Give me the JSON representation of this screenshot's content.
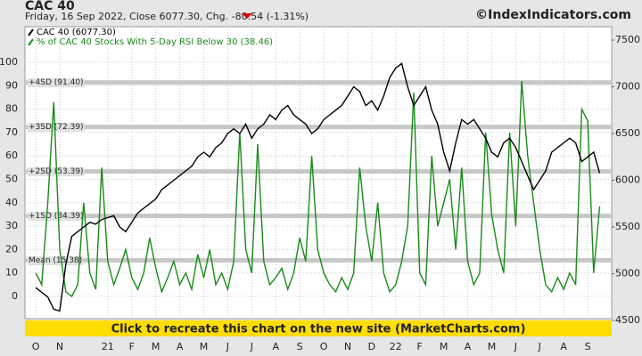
{
  "chart_data": {
    "type": "line",
    "title": "CAC 40",
    "subtitle": "Friday, 16 Sep 2022, Close 6077.30, Chg. -80.54 (-1.31%)",
    "source": "©IndexIndicators.com",
    "banner": "Click to recreate this chart on the new site (MarketCharts.com)",
    "x": [
      0,
      0.25,
      0.5,
      0.75,
      1,
      1.25,
      1.5,
      1.75,
      2,
      2.25,
      2.5,
      2.75,
      3,
      3.25,
      3.5,
      3.75,
      4,
      4.25,
      4.5,
      4.75,
      5,
      5.25,
      5.5,
      5.75,
      6,
      6.25,
      6.5,
      6.75,
      7,
      7.25,
      7.5,
      7.75,
      8,
      8.25,
      8.5,
      8.75,
      9,
      9.25,
      9.5,
      9.75,
      10,
      10.25,
      10.5,
      10.75,
      11,
      11.25,
      11.5,
      11.75,
      12,
      12.25,
      12.5,
      12.75,
      13,
      13.25,
      13.5,
      13.75,
      14,
      14.25,
      14.5,
      14.75,
      15,
      15.25,
      15.5,
      15.75,
      16,
      16.25,
      16.5,
      16.75,
      17,
      17.25,
      17.5,
      17.75,
      18,
      18.25,
      18.5,
      18.75,
      19,
      19.25,
      19.5,
      19.75,
      20,
      20.25,
      20.5,
      20.75,
      21,
      21.25,
      21.5,
      21.75,
      22,
      22.25,
      22.5,
      22.75,
      23,
      23.25,
      23.5
    ],
    "series": [
      {
        "name": "CAC 40 (6077.30)",
        "color": "#000000",
        "axis": "y2",
        "values": [
          4850,
          4800,
          4750,
          4620,
          4600,
          5100,
          5400,
          5450,
          5500,
          5550,
          5530,
          5580,
          5600,
          5620,
          5500,
          5450,
          5550,
          5650,
          5700,
          5750,
          5800,
          5900,
          5950,
          6000,
          6050,
          6100,
          6150,
          6250,
          6300,
          6250,
          6350,
          6400,
          6500,
          6550,
          6500,
          6600,
          6450,
          6550,
          6600,
          6700,
          6650,
          6750,
          6800,
          6700,
          6650,
          6600,
          6500,
          6550,
          6650,
          6700,
          6750,
          6800,
          6900,
          7000,
          6950,
          6800,
          6850,
          6750,
          6900,
          7100,
          7200,
          7250,
          7000,
          6800,
          6900,
          7000,
          6750,
          6600,
          6300,
          6100,
          6400,
          6650,
          6600,
          6650,
          6550,
          6450,
          6300,
          6250,
          6400,
          6450,
          6350,
          6200,
          6050,
          5900,
          6000,
          6100,
          6300,
          6350,
          6400,
          6450,
          6400,
          6200,
          6250,
          6300,
          6077.3
        ]
      },
      {
        "name": "% of CAC 40 Stocks With 5-Day RSI Below 30 (38.46)",
        "color": "#1a8a1a",
        "values": [
          10,
          5,
          40,
          83,
          20,
          2,
          0,
          5,
          40,
          10,
          3,
          55,
          15,
          5,
          12,
          20,
          8,
          3,
          10,
          25,
          12,
          2,
          8,
          15,
          5,
          10,
          3,
          18,
          8,
          20,
          5,
          10,
          3,
          15,
          70,
          20,
          10,
          65,
          15,
          5,
          8,
          12,
          3,
          10,
          25,
          15,
          60,
          20,
          10,
          5,
          2,
          8,
          3,
          10,
          55,
          30,
          15,
          40,
          10,
          2,
          5,
          15,
          30,
          87,
          10,
          5,
          60,
          30,
          40,
          50,
          20,
          55,
          15,
          5,
          10,
          70,
          35,
          20,
          10,
          70,
          30,
          92,
          60,
          40,
          20,
          5,
          2,
          8,
          3,
          10,
          5,
          80,
          75,
          10,
          38.46
        ]
      }
    ],
    "annotations": [
      {
        "label": "+4SD (91.40)",
        "value": 91.4
      },
      {
        "label": "+3SD (72.39)",
        "value": 72.39
      },
      {
        "label": "+2SD (53.39)",
        "value": 53.39
      },
      {
        "label": "+1SD (34.39)",
        "value": 34.39
      },
      {
        "label": "Mean (15.38)",
        "value": 15.38
      }
    ],
    "xlim": [
      -0.45,
      24
    ],
    "xticks": [
      {
        "value": 0,
        "label": "O"
      },
      {
        "value": 1,
        "label": "N"
      },
      {
        "value": 3,
        "label": "21"
      },
      {
        "value": 4,
        "label": "F"
      },
      {
        "value": 5,
        "label": "M"
      },
      {
        "value": 6,
        "label": "A"
      },
      {
        "value": 7,
        "label": "M"
      },
      {
        "value": 8,
        "label": "J"
      },
      {
        "value": 9,
        "label": "J"
      },
      {
        "value": 10,
        "label": "A"
      },
      {
        "value": 11,
        "label": "S"
      },
      {
        "value": 12,
        "label": "O"
      },
      {
        "value": 13,
        "label": "N"
      },
      {
        "value": 14,
        "label": "D"
      },
      {
        "value": 15,
        "label": "22"
      },
      {
        "value": 16,
        "label": "F"
      },
      {
        "value": 17,
        "label": "M"
      },
      {
        "value": 18,
        "label": "A"
      },
      {
        "value": 19,
        "label": "M"
      },
      {
        "value": 20,
        "label": "J"
      },
      {
        "value": 21,
        "label": "J"
      },
      {
        "value": 22,
        "label": "A"
      },
      {
        "value": 23,
        "label": "S"
      }
    ],
    "ylim": [
      -9.5,
      115.2
    ],
    "yticks": [
      0,
      10,
      20,
      30,
      40,
      50,
      60,
      70,
      80,
      90,
      100
    ],
    "y2lim": [
      4519,
      7643
    ],
    "y2ticks": [
      4500,
      5000,
      5500,
      6000,
      6500,
      7000,
      7500
    ],
    "grid": true
  }
}
